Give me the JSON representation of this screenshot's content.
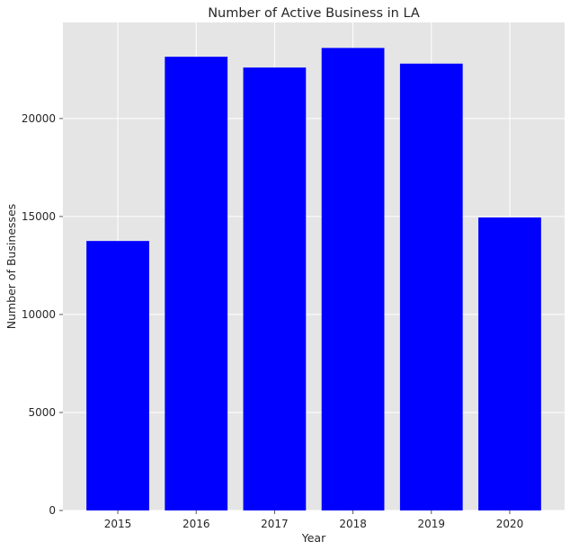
{
  "chart_data": {
    "type": "bar",
    "title": "Number of Active Business in LA",
    "xlabel": "Year",
    "ylabel": "Number of Businesses",
    "categories": [
      "2015",
      "2016",
      "2017",
      "2018",
      "2019",
      "2020"
    ],
    "values": [
      13750,
      23150,
      22600,
      23600,
      22800,
      14950
    ],
    "ylim": [
      0,
      24900
    ],
    "yticks": [
      0,
      5000,
      10000,
      15000,
      20000
    ],
    "grid": true,
    "colors": {
      "bar": "#0000ff",
      "plot_background": "#e5e5e5",
      "grid": "#ffffff"
    }
  }
}
